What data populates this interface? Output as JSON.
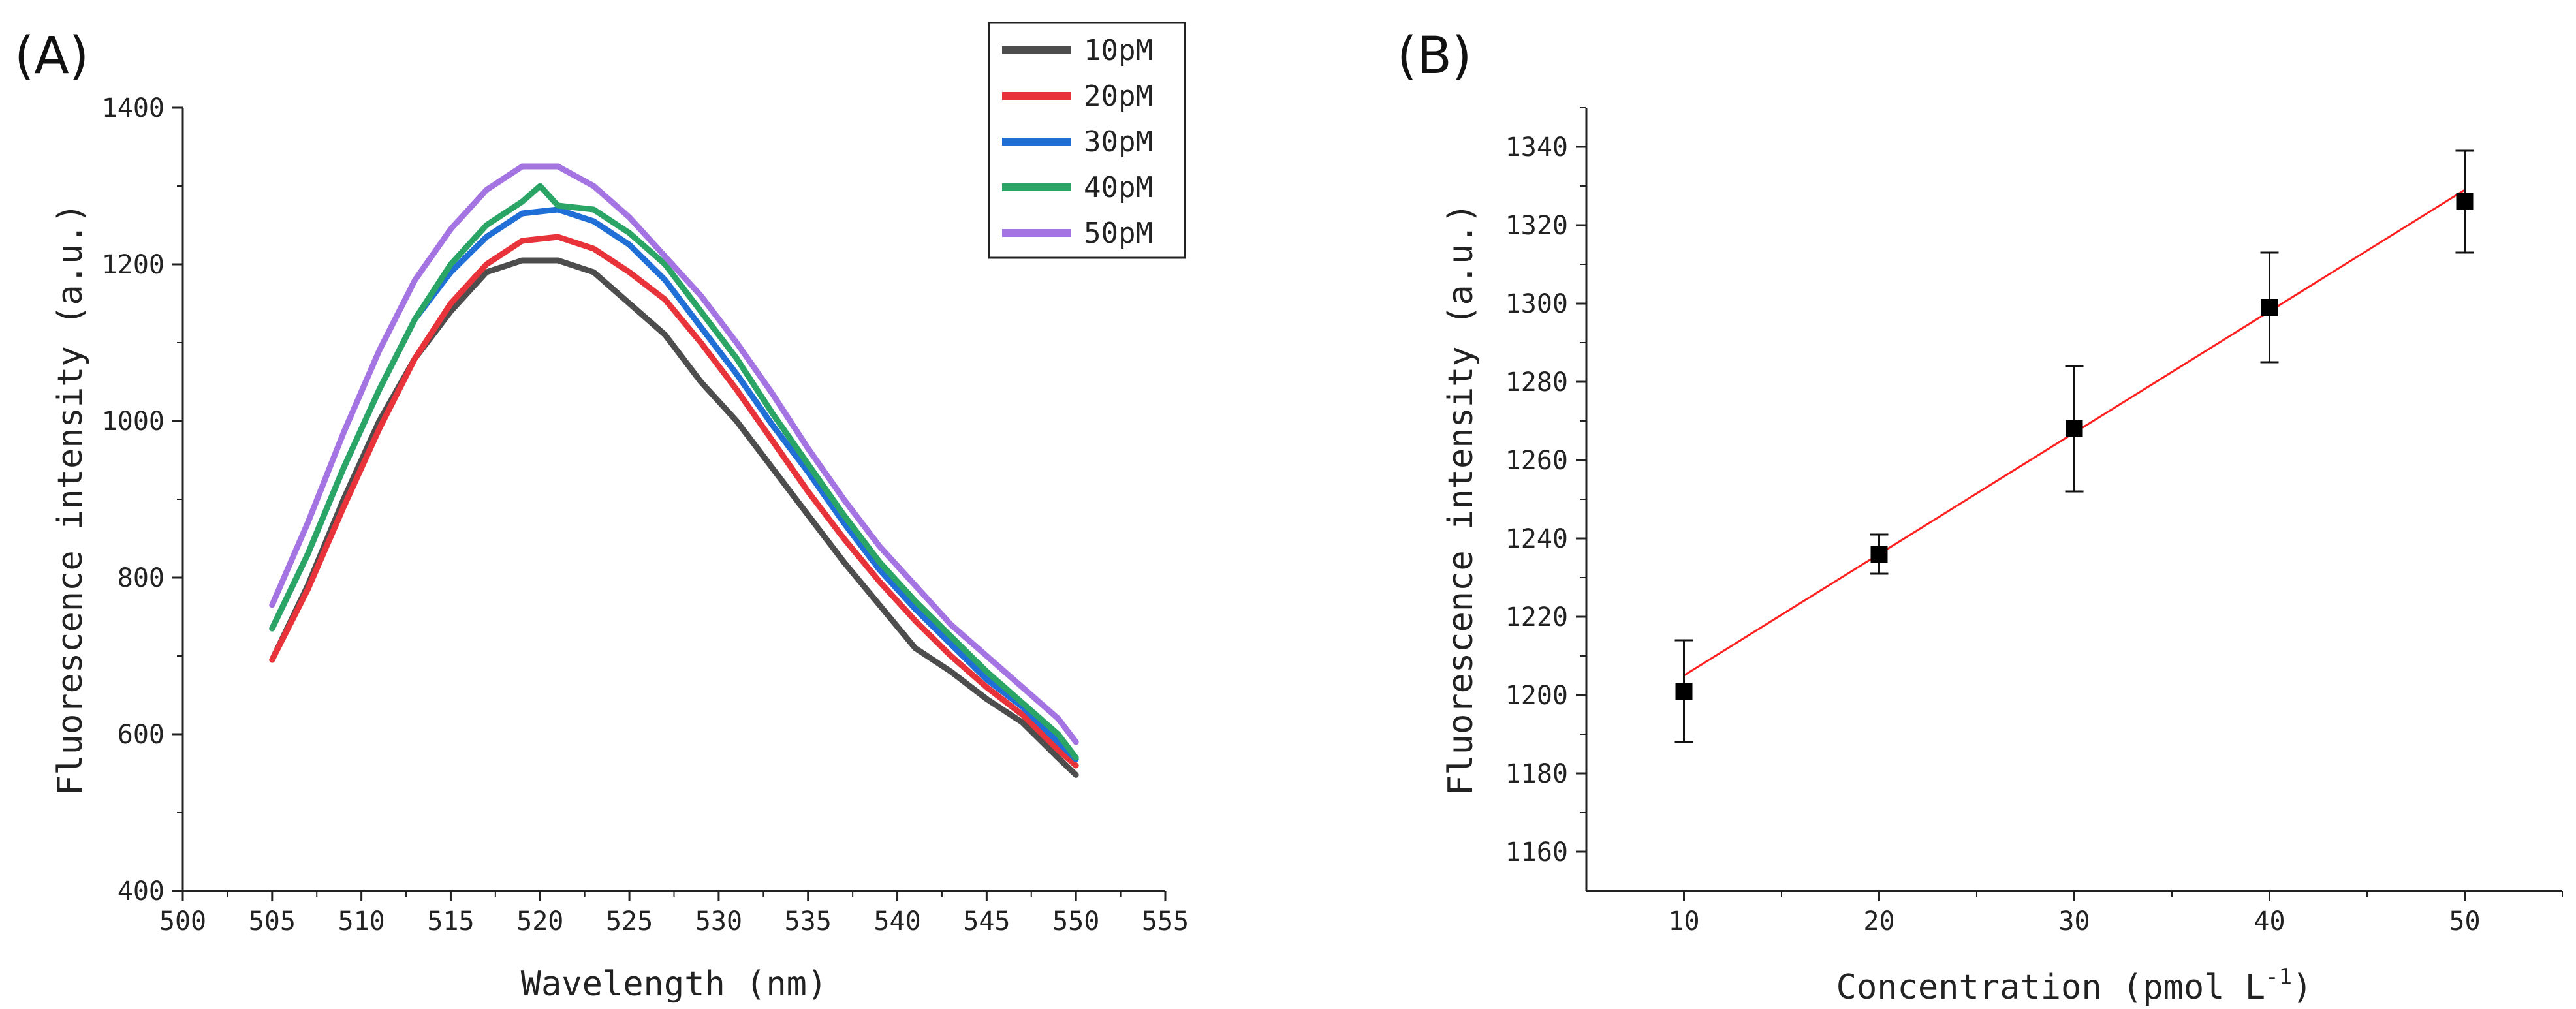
{
  "colors": {
    "10pM": "#4d4d4d",
    "20pM": "#e8333a",
    "30pM": "#1f6fd6",
    "40pM": "#2aa566",
    "50pM": "#a574e3",
    "fit_line": "#ff2020",
    "points": "#000000"
  },
  "chart_data": [
    {
      "panel": "(A)",
      "type": "line",
      "xlabel": "Wavelength (nm)",
      "ylabel": "Fluorescence intensity (a.u.)",
      "xlim": [
        500,
        555
      ],
      "ylim": [
        400,
        1400
      ],
      "xticks": [
        500,
        505,
        510,
        515,
        520,
        525,
        530,
        535,
        540,
        545,
        550,
        555
      ],
      "yticks": [
        400,
        600,
        800,
        1000,
        1200,
        1400
      ],
      "legend_position": "top-right",
      "series": [
        {
          "name": "10pM",
          "color_key": "10pM",
          "x": [
            505,
            507,
            509,
            511,
            513,
            515,
            517,
            519,
            521,
            523,
            525,
            527,
            529,
            531,
            533,
            535,
            537,
            539,
            541,
            543,
            545,
            547,
            549,
            550
          ],
          "y": [
            695,
            790,
            900,
            1000,
            1080,
            1140,
            1190,
            1205,
            1205,
            1190,
            1150,
            1110,
            1050,
            1000,
            940,
            880,
            820,
            765,
            710,
            680,
            645,
            615,
            570,
            548
          ]
        },
        {
          "name": "20pM",
          "color_key": "20pM",
          "x": [
            505,
            507,
            509,
            511,
            513,
            515,
            517,
            519,
            521,
            523,
            525,
            527,
            529,
            531,
            533,
            535,
            537,
            539,
            541,
            543,
            545,
            547,
            549,
            550
          ],
          "y": [
            695,
            785,
            890,
            990,
            1080,
            1150,
            1200,
            1230,
            1235,
            1220,
            1190,
            1155,
            1100,
            1040,
            975,
            910,
            850,
            795,
            745,
            700,
            660,
            625,
            580,
            560
          ]
        },
        {
          "name": "30pM",
          "color_key": "30pM",
          "x": [
            505,
            507,
            509,
            511,
            513,
            515,
            517,
            519,
            521,
            523,
            525,
            527,
            529,
            531,
            533,
            535,
            537,
            539,
            541,
            543,
            545,
            547,
            549,
            550
          ],
          "y": [
            735,
            830,
            940,
            1040,
            1130,
            1190,
            1235,
            1265,
            1270,
            1255,
            1225,
            1180,
            1120,
            1060,
            995,
            935,
            870,
            810,
            760,
            715,
            670,
            635,
            590,
            568
          ]
        },
        {
          "name": "40pM",
          "color_key": "40pM",
          "x": [
            505,
            507,
            509,
            511,
            513,
            515,
            517,
            519,
            520,
            521,
            523,
            525,
            527,
            529,
            531,
            533,
            535,
            537,
            539,
            541,
            543,
            545,
            547,
            549,
            550
          ],
          "y": [
            735,
            830,
            940,
            1040,
            1130,
            1200,
            1250,
            1280,
            1300,
            1275,
            1270,
            1240,
            1200,
            1140,
            1080,
            1010,
            945,
            880,
            820,
            770,
            725,
            680,
            640,
            600,
            570
          ]
        },
        {
          "name": "50pM",
          "color_key": "50pM",
          "x": [
            505,
            507,
            509,
            511,
            513,
            515,
            517,
            519,
            521,
            523,
            525,
            527,
            529,
            531,
            533,
            535,
            537,
            539,
            541,
            543,
            545,
            547,
            549,
            550
          ],
          "y": [
            765,
            870,
            985,
            1090,
            1180,
            1245,
            1295,
            1325,
            1325,
            1300,
            1260,
            1210,
            1160,
            1100,
            1035,
            965,
            900,
            840,
            790,
            740,
            700,
            660,
            620,
            590
          ]
        }
      ]
    },
    {
      "panel": "(B)",
      "type": "scatter",
      "xlabel": "Concentration (pmol L",
      "xlabel_superscript": "-1",
      "xlabel_suffix": ")",
      "ylabel": "Fluorescence intensity (a.u.)",
      "xlim": [
        5,
        55
      ],
      "ylim": [
        1150,
        1350
      ],
      "xticks": [
        10,
        20,
        30,
        40,
        50
      ],
      "yticks": [
        1160,
        1180,
        1200,
        1220,
        1240,
        1260,
        1280,
        1300,
        1320,
        1340
      ],
      "points": {
        "x": [
          10,
          20,
          30,
          40,
          50
        ],
        "y": [
          1201,
          1236,
          1268,
          1299,
          1326
        ],
        "error": [
          13,
          5,
          16,
          14,
          13
        ]
      },
      "fit": {
        "x": [
          10,
          50
        ],
        "y": [
          1205,
          1329
        ]
      }
    }
  ]
}
